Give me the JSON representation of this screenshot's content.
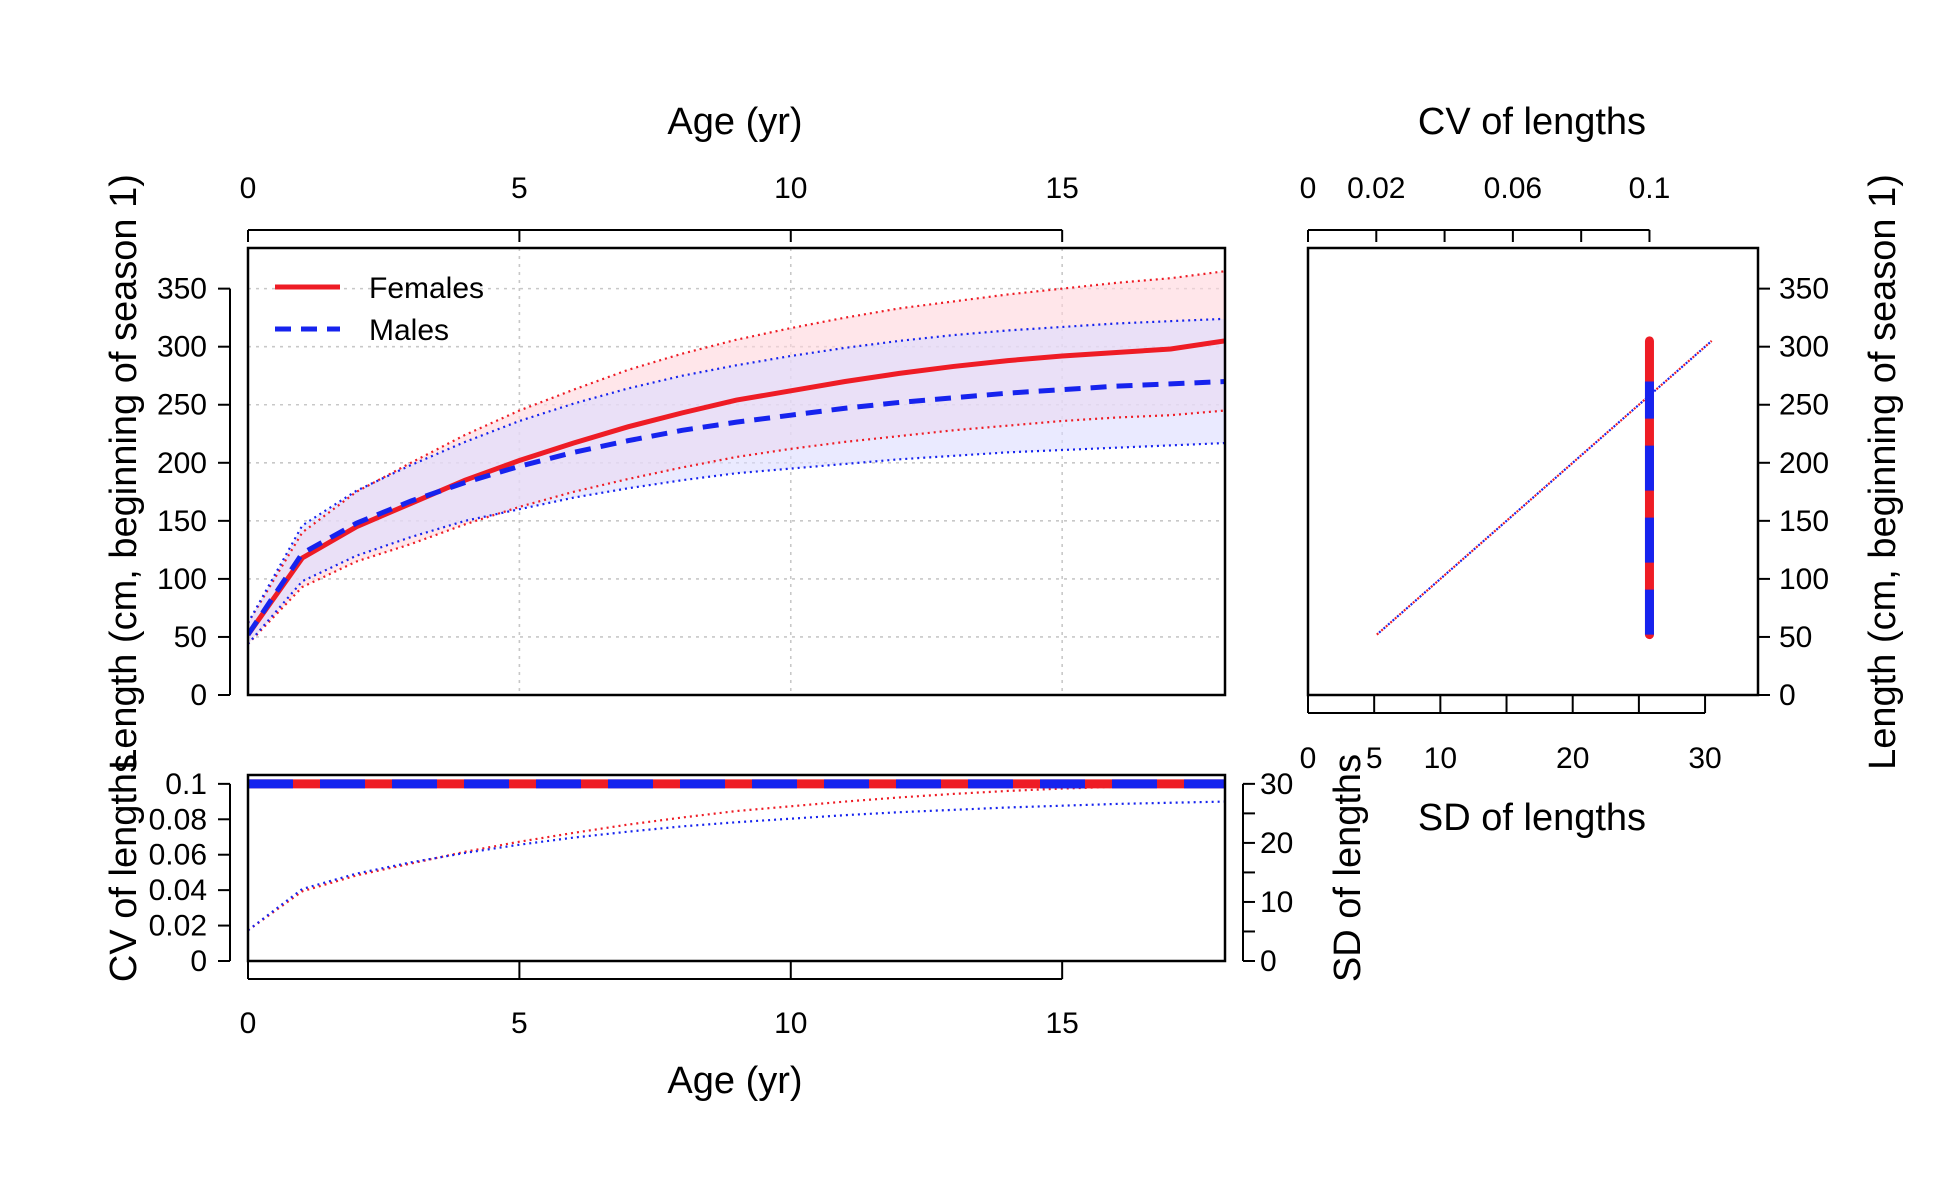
{
  "chart_data": [
    {
      "id": "growth",
      "type": "line",
      "title": "",
      "xlabel_top": "Age (yr)",
      "ylabel": "Length (cm, beginning of season 1)",
      "xlim": [
        0,
        18
      ],
      "ylim": [
        0,
        385
      ],
      "x_ticks": [
        0,
        5,
        10,
        15
      ],
      "y_ticks": [
        0,
        50,
        100,
        150,
        200,
        250,
        300,
        350
      ],
      "grid": true,
      "legend": {
        "position": "top-left",
        "entries": [
          "Females",
          "Males"
        ]
      },
      "x": [
        0,
        1,
        2,
        3,
        4,
        5,
        6,
        7,
        8,
        9,
        10,
        11,
        12,
        13,
        14,
        15,
        16,
        17,
        18
      ],
      "series": [
        {
          "name": "Females",
          "color": "#ee1c25",
          "dash": "solid",
          "fill": "#ffd6dc",
          "mean": [
            52,
            118,
            145,
            165,
            185,
            202,
            217,
            231,
            243,
            254,
            262,
            270,
            277,
            283,
            288,
            292,
            295,
            298,
            305
          ],
          "upper": [
            62,
            140,
            175,
            200,
            224,
            245,
            263,
            280,
            294,
            306,
            316,
            325,
            333,
            339,
            345,
            350,
            355,
            359,
            365
          ],
          "lower": [
            44,
            93,
            115,
            130,
            147,
            162,
            175,
            186,
            196,
            205,
            212,
            218,
            223,
            228,
            232,
            236,
            239,
            241,
            245
          ]
        },
        {
          "name": "Males",
          "color": "#1623ee",
          "dash": "dashed",
          "fill": "#dcdcff",
          "mean": [
            52,
            122,
            148,
            167,
            183,
            197,
            209,
            219,
            228,
            235,
            241,
            247,
            252,
            256,
            260,
            263,
            266,
            268,
            270
          ],
          "upper": [
            62,
            146,
            176,
            198,
            218,
            236,
            251,
            264,
            275,
            284,
            292,
            299,
            305,
            310,
            314,
            317,
            320,
            322,
            324
          ],
          "lower": [
            44,
            98,
            120,
            136,
            150,
            160,
            170,
            178,
            185,
            191,
            195,
            199,
            203,
            206,
            209,
            211,
            213,
            215,
            217
          ]
        }
      ]
    },
    {
      "id": "cv_panel",
      "type": "line",
      "xlabel": "Age (yr)",
      "ylabel": "CV of lengths",
      "ylabel_right": "SD of lengths",
      "xlim": [
        0,
        18
      ],
      "ylim": [
        0,
        0.105
      ],
      "ylim_right": [
        0,
        31.5
      ],
      "x_ticks": [
        0,
        5,
        10,
        15
      ],
      "y_ticks": [
        0,
        0.02,
        0.04,
        0.06,
        0.08,
        0.1
      ],
      "y_ticks_right": [
        0,
        10,
        20,
        30
      ],
      "cv": {
        "Females": 0.1,
        "Males": 0.1
      },
      "sd_series": [
        {
          "name": "Females",
          "color": "#ee1c25",
          "values": [
            5.2,
            11.8,
            14.5,
            16.5,
            18.5,
            20.2,
            21.7,
            23.1,
            24.3,
            25.4,
            26.2,
            27.0,
            27.7,
            28.3,
            28.8,
            29.2,
            29.5,
            29.8,
            30.5
          ]
        },
        {
          "name": "Males",
          "color": "#1623ee",
          "values": [
            5.2,
            12.2,
            14.8,
            16.7,
            18.3,
            19.7,
            20.9,
            21.9,
            22.8,
            23.5,
            24.1,
            24.7,
            25.2,
            25.6,
            26.0,
            26.3,
            26.6,
            26.8,
            27.0
          ]
        }
      ]
    },
    {
      "id": "cv_sd_vs_length",
      "type": "line",
      "xlabel": "SD of lengths",
      "xlabel_top": "CV of lengths",
      "ylabel_right": "Length (cm, beginning of season 1)",
      "xlim": [
        0,
        34
      ],
      "ylim": [
        0,
        385
      ],
      "x_ticks": [
        0,
        5,
        10,
        20,
        30
      ],
      "x_top_ticks": [
        0,
        0.02,
        0.06,
        0.1
      ],
      "y_ticks": [
        0,
        50,
        100,
        150,
        200,
        250,
        300,
        350
      ],
      "sd_line": {
        "from": [
          5.2,
          52
        ],
        "to": [
          30.5,
          305
        ]
      },
      "cv_bar": {
        "cv": 0.1,
        "from": 52,
        "to": 305
      }
    }
  ]
}
